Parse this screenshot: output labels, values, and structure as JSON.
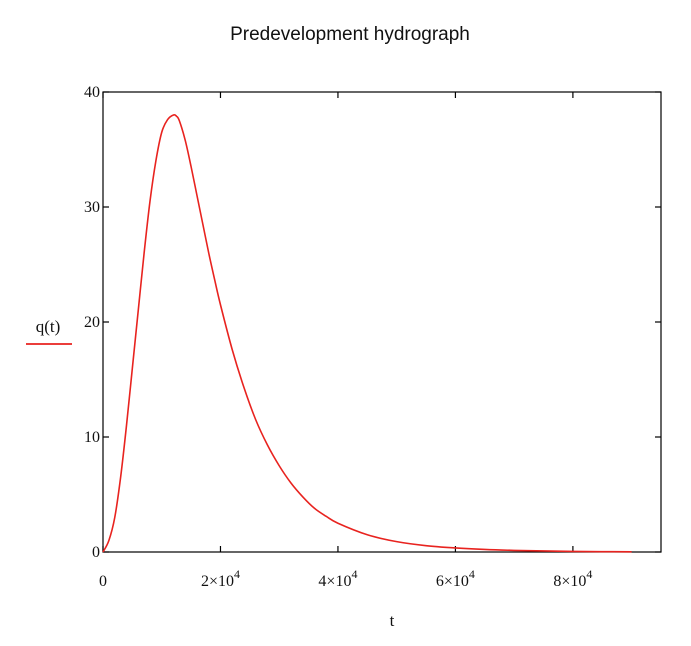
{
  "chart_data": {
    "type": "line",
    "title": "Predevelopment hydrograph",
    "xlabel": "t",
    "ylabel": "q(t)",
    "xlim": [
      0,
      95000
    ],
    "ylim": [
      0,
      40
    ],
    "x_ticks": [
      {
        "value": 0,
        "mant": "0",
        "exp": ""
      },
      {
        "value": 20000,
        "mant": "2×10",
        "exp": "4"
      },
      {
        "value": 40000,
        "mant": "4×10",
        "exp": "4"
      },
      {
        "value": 60000,
        "mant": "6×10",
        "exp": "4"
      },
      {
        "value": 80000,
        "mant": "8×10",
        "exp": "4"
      }
    ],
    "y_ticks": [
      {
        "value": 0,
        "label": "0"
      },
      {
        "value": 10,
        "label": "10"
      },
      {
        "value": 20,
        "label": "20"
      },
      {
        "value": 30,
        "label": "30"
      },
      {
        "value": 40,
        "label": "40"
      }
    ],
    "grid": false,
    "legend": "left",
    "series": [
      {
        "name": "q(t)",
        "color": "#e8231f",
        "x": [
          0,
          1000,
          2000,
          3000,
          4000,
          5000,
          6000,
          7000,
          8000,
          9000,
          10000,
          11000,
          12000,
          12500,
          13000,
          14000,
          15000,
          16000,
          17000,
          18000,
          19000,
          20000,
          22000,
          24000,
          26000,
          28000,
          30000,
          32000,
          34000,
          36000,
          38000,
          40000,
          45000,
          50000,
          55000,
          60000,
          65000,
          70000,
          75000,
          80000,
          85000,
          90000
        ],
        "values": [
          0,
          1.0,
          3.0,
          6.5,
          11.0,
          16.0,
          21.0,
          26.0,
          30.5,
          34.0,
          36.5,
          37.6,
          38.0,
          37.9,
          37.5,
          35.8,
          33.5,
          31.0,
          28.5,
          26.0,
          23.7,
          21.5,
          17.6,
          14.3,
          11.5,
          9.3,
          7.5,
          6.0,
          4.8,
          3.8,
          3.1,
          2.5,
          1.5,
          0.9,
          0.55,
          0.35,
          0.22,
          0.14,
          0.09,
          0.05,
          0.03,
          0.02
        ]
      }
    ]
  }
}
